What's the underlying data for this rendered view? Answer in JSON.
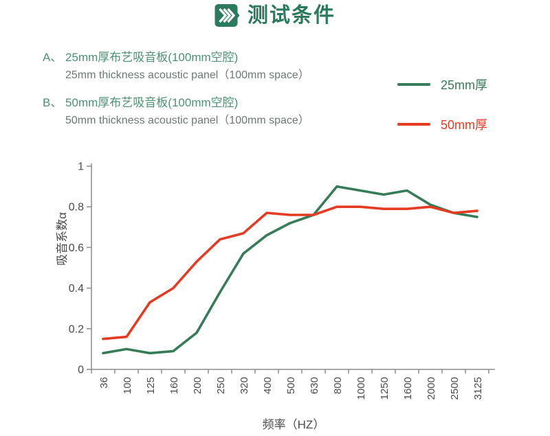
{
  "header": {
    "title": "测试条件"
  },
  "conditions": [
    {
      "label_zh": "A、 25mm厚布艺吸音板(100mm空腔)",
      "label_en": "25mm thickness acoustic panel（100mm space）"
    },
    {
      "label_zh": "B、 50mm厚布艺吸音板(100mm空腔)",
      "label_en": "50mm thickness acoustic panel（100mm space）"
    }
  ],
  "legend": [
    {
      "label": "25mm厚",
      "color": "#377c59"
    },
    {
      "label": "50mm厚",
      "color": "#e63b23"
    }
  ],
  "colors": {
    "title_green": "#2c7a5e",
    "icon_green": "#2c7a5e",
    "text_green": "#4e9174",
    "text_gray": "#6e7a74",
    "axis_gray": "#8c8c8c",
    "tick_text": "#4a4a4a"
  },
  "chart_data": {
    "type": "line",
    "categories": [
      "36",
      "100",
      "125",
      "160",
      "200",
      "250",
      "320",
      "400",
      "500",
      "630",
      "800",
      "1000",
      "1250",
      "1600",
      "2000",
      "2500",
      "3125"
    ],
    "series": [
      {
        "name": "25mm厚",
        "color": "#377c59",
        "values": [
          0.08,
          0.1,
          0.08,
          0.09,
          0.18,
          0.38,
          0.57,
          0.66,
          0.72,
          0.76,
          0.9,
          0.88,
          0.86,
          0.88,
          0.81,
          0.77,
          0.75
        ]
      },
      {
        "name": "50mm厚",
        "color": "#e63b23",
        "values": [
          0.15,
          0.16,
          0.33,
          0.4,
          0.53,
          0.64,
          0.67,
          0.77,
          0.76,
          0.76,
          0.8,
          0.8,
          0.79,
          0.79,
          0.8,
          0.77,
          0.78
        ]
      }
    ],
    "xlabel": "频率（HZ）",
    "ylabel": "吸音系数α",
    "ylim": [
      0,
      1
    ],
    "yticks": [
      0,
      0.2,
      0.4,
      0.6,
      0.8,
      1
    ],
    "grid": false,
    "legend_position": "upper right outside"
  }
}
